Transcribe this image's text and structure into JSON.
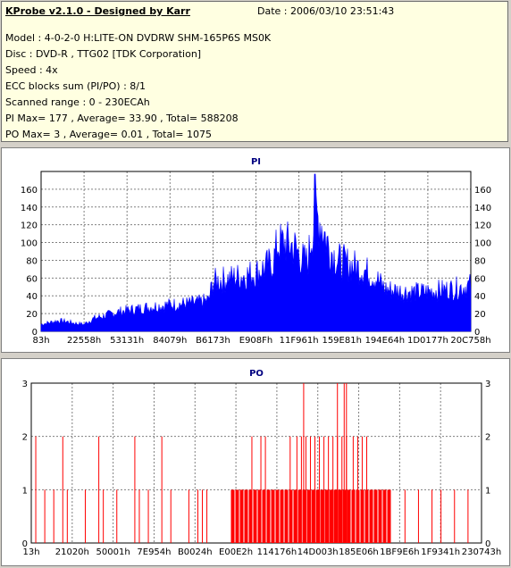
{
  "info": {
    "title": "KProbe v2.1.0 - Designed by Karr",
    "date": "Date : 2006/03/10 23:51:43",
    "lines": [
      "Model : 4-0-2-0 H:LITE-ON DVDRW SHM-165P6S MS0K",
      "Disc : DVD-R , TTG02 [TDK Corporation]",
      "Speed : 4x",
      "ECC blocks sum (PI/PO) : 8/1",
      "Scanned range : 0 - 230ECAh",
      "PI Max= 177 , Average= 33.90 , Total= 588208",
      "PO Max= 3 , Average= 0.01 , Total= 1075"
    ]
  },
  "chart_data": [
    {
      "type": "area",
      "title": "PI",
      "ylim": [
        0,
        180
      ],
      "yticks": [
        0,
        20,
        40,
        60,
        80,
        100,
        120,
        140,
        160
      ],
      "xtick_labels": [
        "83h",
        "22558h",
        "53131h",
        "84079h",
        "B6173h",
        "E908Fh",
        "11F961h",
        "159E81h",
        "194E64h",
        "1D0177h",
        "20C758h"
      ],
      "series_color": "#0000ff",
      "grid": true,
      "profile": [
        [
          0,
          8
        ],
        [
          0.02,
          10
        ],
        [
          0.04,
          12
        ],
        [
          0.06,
          11
        ],
        [
          0.08,
          9
        ],
        [
          0.1,
          8
        ],
        [
          0.12,
          14
        ],
        [
          0.15,
          18
        ],
        [
          0.18,
          22
        ],
        [
          0.22,
          25
        ],
        [
          0.26,
          28
        ],
        [
          0.3,
          30
        ],
        [
          0.33,
          31
        ],
        [
          0.36,
          32
        ],
        [
          0.38,
          34
        ],
        [
          0.39,
          35
        ],
        [
          0.4,
          56
        ],
        [
          0.42,
          58
        ],
        [
          0.44,
          60
        ],
        [
          0.46,
          62
        ],
        [
          0.48,
          64
        ],
        [
          0.5,
          66
        ],
        [
          0.52,
          72
        ],
        [
          0.54,
          78
        ],
        [
          0.55,
          98
        ],
        [
          0.57,
          100
        ],
        [
          0.59,
          95
        ],
        [
          0.61,
          80
        ],
        [
          0.62,
          78
        ],
        [
          0.63,
          110
        ],
        [
          0.64,
          130
        ],
        [
          0.65,
          125
        ],
        [
          0.66,
          110
        ],
        [
          0.67,
          95
        ],
        [
          0.69,
          80
        ],
        [
          0.72,
          75
        ],
        [
          0.75,
          70
        ],
        [
          0.78,
          60
        ],
        [
          0.8,
          48
        ],
        [
          0.84,
          45
        ],
        [
          0.88,
          44
        ],
        [
          0.92,
          46
        ],
        [
          0.96,
          48
        ],
        [
          1,
          52
        ]
      ],
      "max_value": 177,
      "max_position": 0.637
    },
    {
      "type": "bar",
      "title": "PO",
      "ylim": [
        0,
        3
      ],
      "yticks": [
        0,
        1,
        2,
        3
      ],
      "xtick_labels": [
        "13h",
        "21020h",
        "50001h",
        "7E954h",
        "B0024h",
        "E00E2h",
        "114176h",
        "14D003h",
        "185E06h",
        "1BF9E6h",
        "1F9341h",
        "230743h"
      ],
      "series_color": "#ff0000",
      "grid": true,
      "events": [
        [
          0.01,
          2
        ],
        [
          0.03,
          1
        ],
        [
          0.05,
          1
        ],
        [
          0.07,
          2
        ],
        [
          0.08,
          1
        ],
        [
          0.12,
          1
        ],
        [
          0.15,
          2
        ],
        [
          0.16,
          1
        ],
        [
          0.19,
          1
        ],
        [
          0.23,
          2
        ],
        [
          0.24,
          1
        ],
        [
          0.26,
          1
        ],
        [
          0.29,
          2
        ],
        [
          0.31,
          1
        ],
        [
          0.35,
          1
        ],
        [
          0.37,
          1
        ],
        [
          0.38,
          1
        ],
        [
          0.39,
          1
        ]
      ],
      "dense_from": 0.445,
      "dense_to": 0.8,
      "dense_3": [
        0.605,
        0.68,
        0.7,
        0.695
      ],
      "dense_2": [
        0.49,
        0.51,
        0.52,
        0.575,
        0.59,
        0.6,
        0.61,
        0.62,
        0.63,
        0.64,
        0.65,
        0.66,
        0.67,
        0.68,
        0.69,
        0.7,
        0.715,
        0.725,
        0.735,
        0.745
      ],
      "tail_events": [
        [
          0.83,
          1
        ],
        [
          0.86,
          1
        ],
        [
          0.89,
          1
        ],
        [
          0.91,
          1
        ],
        [
          0.94,
          1
        ],
        [
          0.97,
          1
        ]
      ]
    }
  ]
}
